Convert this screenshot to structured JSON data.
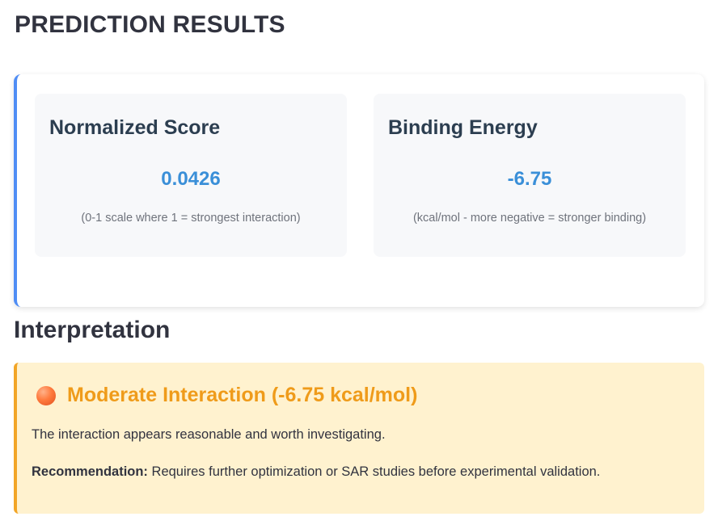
{
  "page": {
    "title": "PREDICTION RESULTS"
  },
  "results": {
    "normalized_score": {
      "title": "Normalized Score",
      "value": "0.0426",
      "note": "(0-1 scale where 1 = strongest interaction)"
    },
    "binding_energy": {
      "title": "Binding Energy",
      "value": "-6.75",
      "note": "(kcal/mol - more negative = stronger binding)"
    }
  },
  "interpretation": {
    "heading": "Interpretation",
    "icon": "orange-circle-icon",
    "title": "Moderate Interaction (-6.75 kcal/mol)",
    "description": "The interaction appears reasonable and worth investigating.",
    "recommendation_label": "Recommendation:",
    "recommendation_text": " Requires further optimization or SAR studies before experimental validation."
  },
  "colors": {
    "accent_blue": "#4f8df5",
    "value_blue": "#3a8fd8",
    "warning_orange": "#f2a527",
    "warning_background": "#fff2cf"
  }
}
